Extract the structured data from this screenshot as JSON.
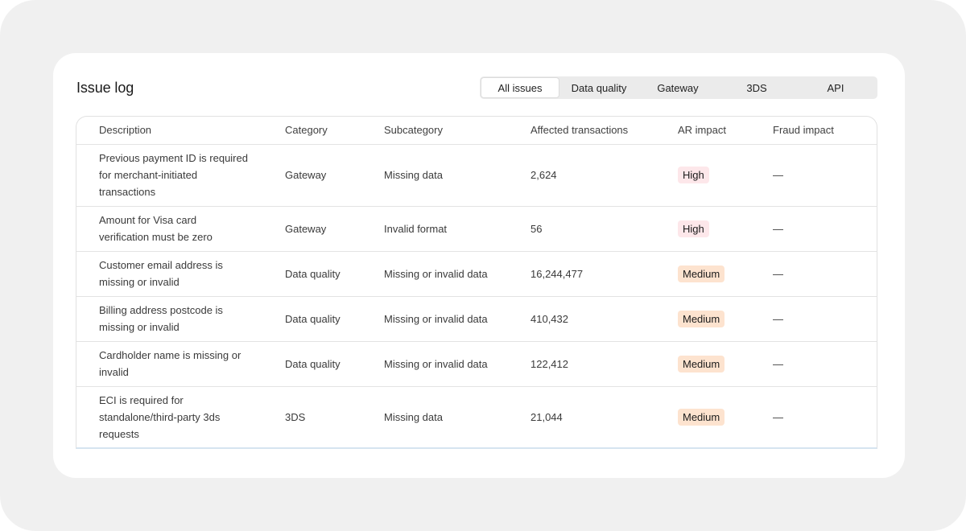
{
  "title": "Issue log",
  "tabs": [
    {
      "label": "All issues",
      "active": true
    },
    {
      "label": "Data quality",
      "active": false
    },
    {
      "label": "Gateway",
      "active": false
    },
    {
      "label": "3DS",
      "active": false
    },
    {
      "label": "API",
      "active": false
    }
  ],
  "columns": [
    "Description",
    "Category",
    "Subcategory",
    "Affected transactions",
    "AR impact",
    "Fraud impact"
  ],
  "badge_colors": {
    "High": "#fde7ea",
    "Medium": "#fde3cf"
  },
  "rows": [
    {
      "description": "Previous payment ID is required for merchant-initiated transactions",
      "category": "Gateway",
      "subcategory": "Missing data",
      "affected": "2,624",
      "ar_impact": "High",
      "fraud_impact": "—"
    },
    {
      "description": "Amount for Visa card verification must be zero",
      "category": "Gateway",
      "subcategory": "Invalid format",
      "affected": "56",
      "ar_impact": "High",
      "fraud_impact": "—"
    },
    {
      "description": "Customer email address is missing or invalid",
      "category": "Data quality",
      "subcategory": "Missing or invalid data",
      "affected": "16,244,477",
      "ar_impact": "Medium",
      "fraud_impact": "—"
    },
    {
      "description": "Billing address postcode is missing or invalid",
      "category": "Data quality",
      "subcategory": "Missing or invalid data",
      "affected": "410,432",
      "ar_impact": "Medium",
      "fraud_impact": "—"
    },
    {
      "description": "Cardholder name is missing or invalid",
      "category": "Data quality",
      "subcategory": "Missing or invalid data",
      "affected": "122,412",
      "ar_impact": "Medium",
      "fraud_impact": "—"
    },
    {
      "description": "ECI is required for standalone/third-party 3ds requests",
      "category": "3DS",
      "subcategory": "Missing data",
      "affected": "21,044",
      "ar_impact": "Medium",
      "fraud_impact": "—"
    }
  ]
}
